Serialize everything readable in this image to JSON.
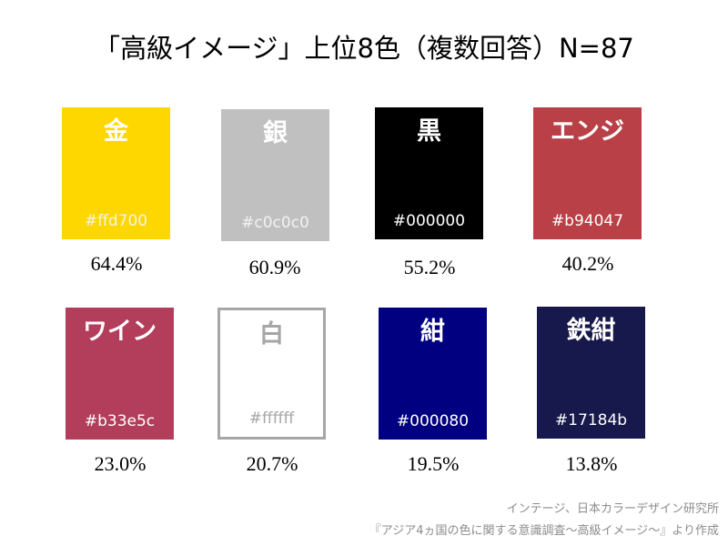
{
  "chart_data": {
    "type": "table",
    "title": "「高級イメージ」上位8色（複数回答）N=87",
    "items": [
      {
        "name": "金",
        "hex": "#ffd700",
        "value": "64.4%"
      },
      {
        "name": "銀",
        "hex": "#c0c0c0",
        "value": "60.9%"
      },
      {
        "name": "黒",
        "hex": "#000000",
        "value": "55.2%"
      },
      {
        "name": "エンジ",
        "hex": "#b94047",
        "value": "40.2%"
      },
      {
        "name": "ワイン",
        "hex": "#b33e5c",
        "value": "23.0%"
      },
      {
        "name": "白",
        "hex": "#ffffff",
        "value": "20.7%"
      },
      {
        "name": "紺",
        "hex": "#000080",
        "value": "19.5%"
      },
      {
        "name": "鉄紺",
        "hex": "#17184b",
        "value": "13.8%"
      }
    ]
  },
  "source": {
    "line1": "インテージ、日本カラーデザイン研究所",
    "line2": "『アジア4ヵ国の色に関する意識調査～高級イメージ～』より作成"
  }
}
